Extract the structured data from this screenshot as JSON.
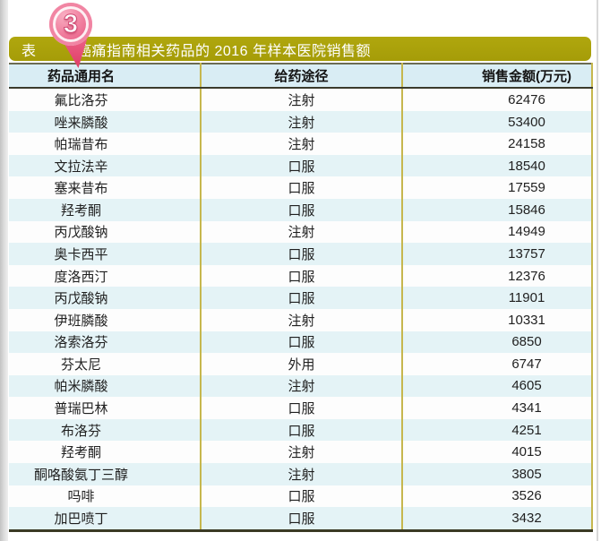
{
  "figure": {
    "badge_number": "3",
    "table_label": "表",
    "title": "癌痛指南相关药品的 2016 年样本医院销售额"
  },
  "colors": {
    "title_bar_olive": "#aaa10b",
    "header_bg": "#d9edf4",
    "stripe_bg": "#e4f3f6",
    "separator_olive": "#c6b74e",
    "dark_rule": "#3a3a28",
    "pin_pink": "#ee6d92",
    "pin_deep_pink": "#de3d66"
  },
  "chart_data": {
    "type": "table",
    "title": "癌痛指南相关药品的 2016 年样本医院销售额",
    "columns": [
      "药品通用名",
      "给药途径",
      "销售金额(万元)"
    ],
    "unit": "万元",
    "rows": [
      {
        "name": "氟比洛芬",
        "route": "注射",
        "amount": "62476"
      },
      {
        "name": "唑来膦酸",
        "route": "注射",
        "amount": "53400"
      },
      {
        "name": "帕瑞昔布",
        "route": "注射",
        "amount": "24158"
      },
      {
        "name": "文拉法辛",
        "route": "口服",
        "amount": "18540"
      },
      {
        "name": "塞来昔布",
        "route": "口服",
        "amount": "17559"
      },
      {
        "name": "羟考酮",
        "route": "口服",
        "amount": "15846"
      },
      {
        "name": "丙戊酸钠",
        "route": "注射",
        "amount": "14949"
      },
      {
        "name": "奥卡西平",
        "route": "口服",
        "amount": "13757"
      },
      {
        "name": "度洛西汀",
        "route": "口服",
        "amount": "12376"
      },
      {
        "name": "丙戊酸钠",
        "route": "口服",
        "amount": "11901"
      },
      {
        "name": "伊班膦酸",
        "route": "注射",
        "amount": "10331"
      },
      {
        "name": "洛索洛芬",
        "route": "口服",
        "amount": "6850"
      },
      {
        "name": "芬太尼",
        "route": "外用",
        "amount": "6747"
      },
      {
        "name": "帕米膦酸",
        "route": "注射",
        "amount": "4605"
      },
      {
        "name": "普瑞巴林",
        "route": "口服",
        "amount": "4341"
      },
      {
        "name": "布洛芬",
        "route": "口服",
        "amount": "4251"
      },
      {
        "name": "羟考酮",
        "route": "注射",
        "amount": "4015"
      },
      {
        "name": "酮咯酸氨丁三醇",
        "route": "注射",
        "amount": "3805"
      },
      {
        "name": "吗啡",
        "route": "口服",
        "amount": "3526"
      },
      {
        "name": "加巴喷丁",
        "route": "口服",
        "amount": "3432"
      }
    ]
  }
}
